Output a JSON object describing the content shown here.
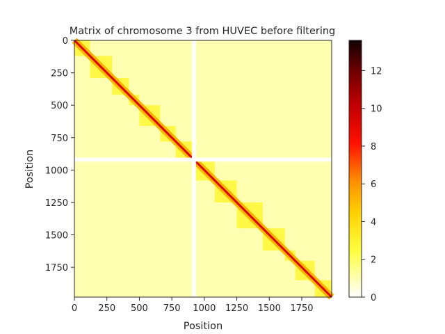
{
  "chart_data": {
    "type": "heatmap",
    "title": "Matrix of chromosome 3 from HUVEC before filtering",
    "xlabel": "Position",
    "ylabel": "Position",
    "xlim": [
      0,
      1980
    ],
    "ylim": [
      1980,
      0
    ],
    "x_ticks": [
      0,
      250,
      500,
      750,
      1000,
      1250,
      1500,
      1750
    ],
    "y_ticks": [
      0,
      250,
      500,
      750,
      1000,
      1250,
      1500,
      1750
    ],
    "colorbar": {
      "colormap": "hot_r",
      "range": [
        0,
        13.6
      ],
      "ticks": [
        0,
        2,
        4,
        6,
        8,
        10,
        12
      ]
    },
    "matrix_size": 1980,
    "diagonal_value": 9.5,
    "gap_bins": [
      905,
      935
    ],
    "domain_boundaries": [
      0,
      120,
      290,
      420,
      500,
      660,
      780,
      905,
      935,
      1080,
      1250,
      1450,
      1620,
      1700,
      1850,
      1980
    ],
    "background_value": 1.0,
    "domain_value": 2.8
  }
}
